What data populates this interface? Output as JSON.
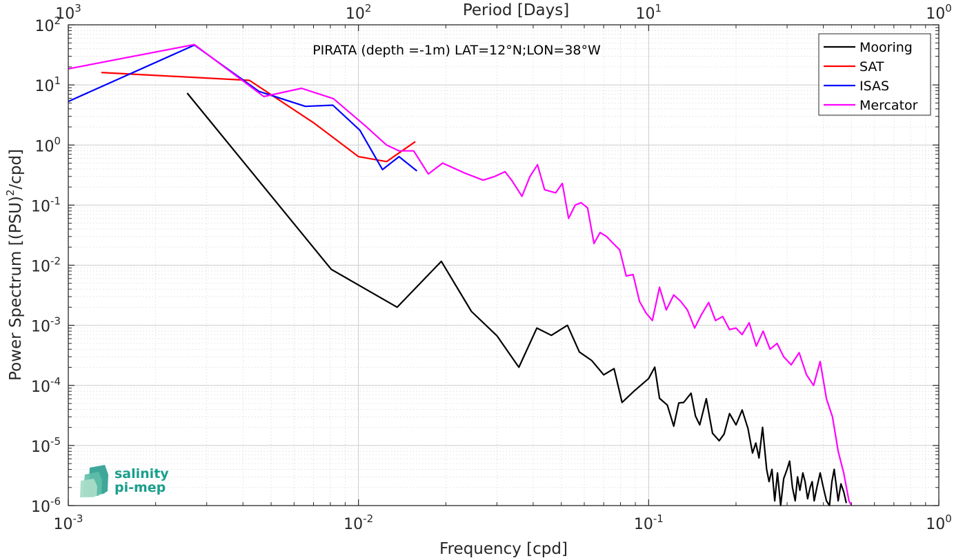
{
  "chart_data": {
    "type": "line",
    "title": "PIRATA (depth =-1m) LAT=12°N;LON=38°W",
    "xlabel": "Frequency [cpd]",
    "ylabel": "Power Spectrum [(PSU)²/cpd]",
    "ylabel_parts": {
      "pre": "Power Spectrum [(PSU)",
      "sup": "2",
      "post": "/cpd]"
    },
    "top_xlabel": "Period [Days]",
    "xscale": "log",
    "yscale": "log",
    "xlim": [
      0.001,
      1
    ],
    "ylim": [
      1e-06,
      100
    ],
    "grid": true,
    "minor_grid": true,
    "legend_position": "top-right",
    "x_ticks": [
      {
        "value": 0.001,
        "base": "10",
        "exp": "-3"
      },
      {
        "value": 0.01,
        "base": "10",
        "exp": "-2"
      },
      {
        "value": 0.1,
        "base": "10",
        "exp": "-1"
      },
      {
        "value": 1,
        "base": "10",
        "exp": "0"
      }
    ],
    "top_ticks": [
      {
        "value": 0.001,
        "base": "10",
        "exp": "3"
      },
      {
        "value": 0.01,
        "base": "10",
        "exp": "2"
      },
      {
        "value": 0.1,
        "base": "10",
        "exp": "1"
      },
      {
        "value": 1,
        "base": "10",
        "exp": "0"
      }
    ],
    "y_ticks": [
      {
        "value": 100,
        "base": "10",
        "exp": "2"
      },
      {
        "value": 10,
        "base": "10",
        "exp": "1"
      },
      {
        "value": 1,
        "base": "10",
        "exp": "0"
      },
      {
        "value": 0.1,
        "base": "10",
        "exp": "-1"
      },
      {
        "value": 0.01,
        "base": "10",
        "exp": "-2"
      },
      {
        "value": 0.001,
        "base": "10",
        "exp": "-3"
      },
      {
        "value": 0.0001,
        "base": "10",
        "exp": "-4"
      },
      {
        "value": 1e-05,
        "base": "10",
        "exp": "-5"
      },
      {
        "value": 1e-06,
        "base": "10",
        "exp": "-6"
      }
    ],
    "series": [
      {
        "name": "Mooring",
        "color": "#000000",
        "points": [
          [
            0.00257,
            7.3
          ],
          [
            0.00806,
            0.0085
          ],
          [
            0.0136,
            0.002
          ],
          [
            0.0193,
            0.0116
          ],
          [
            0.0245,
            0.0017
          ],
          [
            0.03,
            0.00067
          ],
          [
            0.0357,
            0.0002
          ],
          [
            0.0412,
            0.0009
          ],
          [
            0.0462,
            0.00068
          ],
          [
            0.0525,
            0.001
          ],
          [
            0.0577,
            0.00036
          ],
          [
            0.0636,
            0.00026
          ],
          [
            0.07,
            0.00015
          ],
          [
            0.076,
            0.00019
          ],
          [
            0.081,
            5.2e-05
          ],
          [
            0.089,
            8e-05
          ],
          [
            0.1,
            0.00013
          ],
          [
            0.105,
            0.000201
          ],
          [
            0.109,
            6.1e-05
          ],
          [
            0.116,
            4.7e-05
          ],
          [
            0.122,
            2.1e-05
          ],
          [
            0.127,
            5.1e-05
          ],
          [
            0.132,
            5.2e-05
          ],
          [
            0.14,
            7.4e-05
          ],
          [
            0.145,
            3.1e-05
          ],
          [
            0.15,
            2.2e-05
          ],
          [
            0.158,
            6e-05
          ],
          [
            0.166,
            1.6e-05
          ],
          [
            0.175,
            1.2e-05
          ],
          [
            0.182,
            1.55e-05
          ],
          [
            0.19,
            3.4e-05
          ],
          [
            0.2,
            2.2e-05
          ],
          [
            0.21,
            3.9e-05
          ],
          [
            0.22,
            1.9e-05
          ],
          [
            0.228,
            7.5e-06
          ],
          [
            0.234,
            1.1e-05
          ],
          [
            0.24,
            6.2e-06
          ],
          [
            0.247,
            2e-05
          ],
          [
            0.255,
            4e-06
          ],
          [
            0.26,
            2.5e-06
          ],
          [
            0.266,
            4e-06
          ],
          [
            0.272,
            1.2e-06
          ],
          [
            0.278,
            3.5e-06
          ],
          [
            0.285,
            1e-06
          ],
          [
            0.292,
            2.8e-06
          ],
          [
            0.3,
            4e-06
          ],
          [
            0.306,
            5.5e-06
          ],
          [
            0.313,
            2e-06
          ],
          [
            0.32,
            1.2e-06
          ],
          [
            0.326,
            3e-06
          ],
          [
            0.332,
            1.8e-06
          ],
          [
            0.34,
            3.5e-06
          ],
          [
            0.346,
            2.5e-06
          ],
          [
            0.353,
            1.3e-06
          ],
          [
            0.36,
            2e-06
          ],
          [
            0.366,
            2.5e-06
          ],
          [
            0.372,
            1.2e-06
          ],
          [
            0.38,
            2e-06
          ],
          [
            0.39,
            3.5e-06
          ],
          [
            0.4,
            2e-06
          ],
          [
            0.41,
            1.2e-06
          ],
          [
            0.42,
            1e-06
          ],
          [
            0.428,
            2.5e-06
          ],
          [
            0.436,
            4e-06
          ],
          [
            0.444,
            2e-06
          ],
          [
            0.45,
            1.2e-06
          ],
          [
            0.46,
            2.3e-06
          ],
          [
            0.47,
            1.7e-06
          ],
          [
            0.48,
            1.1e-06
          ]
        ]
      },
      {
        "name": "SAT",
        "color": "#ff0000",
        "points": [
          [
            0.0013,
            16.1
          ],
          [
            0.00421,
            11.9
          ],
          [
            0.007,
            2.35
          ],
          [
            0.01,
            0.64
          ],
          [
            0.0125,
            0.53
          ],
          [
            0.0157,
            1.14
          ]
        ]
      },
      {
        "name": "ISAS",
        "color": "#0000ff",
        "points": [
          [
            0.001,
            5.3
          ],
          [
            0.00272,
            46
          ],
          [
            0.00454,
            7.8
          ],
          [
            0.00656,
            4.4
          ],
          [
            0.00816,
            4.6
          ],
          [
            0.01012,
            1.76
          ],
          [
            0.0121,
            0.39
          ],
          [
            0.0138,
            0.64
          ],
          [
            0.0159,
            0.37
          ]
        ]
      },
      {
        "name": "Mercator",
        "color": "#ff00ff",
        "points": [
          [
            0.001,
            18.5
          ],
          [
            0.00272,
            47
          ],
          [
            0.00472,
            6.4
          ],
          [
            0.00636,
            8.8
          ],
          [
            0.0082,
            5.9
          ],
          [
            0.0106,
            2.05
          ],
          [
            0.0125,
            1.0
          ],
          [
            0.0138,
            0.8
          ],
          [
            0.0155,
            0.8
          ],
          [
            0.0174,
            0.33
          ],
          [
            0.0195,
            0.5
          ],
          [
            0.0233,
            0.34
          ],
          [
            0.0269,
            0.26
          ],
          [
            0.0295,
            0.3
          ],
          [
            0.032,
            0.36
          ],
          [
            0.0339,
            0.25
          ],
          [
            0.0366,
            0.14
          ],
          [
            0.039,
            0.3
          ],
          [
            0.0414,
            0.47
          ],
          [
            0.0438,
            0.18
          ],
          [
            0.0478,
            0.16
          ],
          [
            0.0504,
            0.23
          ],
          [
            0.053,
            0.06
          ],
          [
            0.0558,
            0.1
          ],
          [
            0.0585,
            0.11
          ],
          [
            0.0616,
            0.09
          ],
          [
            0.0648,
            0.023
          ],
          [
            0.068,
            0.035
          ],
          [
            0.0716,
            0.03
          ],
          [
            0.0755,
            0.023
          ],
          [
            0.0795,
            0.018
          ],
          [
            0.0837,
            0.0066
          ],
          [
            0.0884,
            0.007
          ],
          [
            0.093,
            0.0025
          ],
          [
            0.098,
            0.0016
          ],
          [
            0.103,
            0.0012
          ],
          [
            0.109,
            0.0043
          ],
          [
            0.115,
            0.0018
          ],
          [
            0.122,
            0.0032
          ],
          [
            0.129,
            0.0025
          ],
          [
            0.136,
            0.0018
          ],
          [
            0.144,
            0.0009
          ],
          [
            0.152,
            0.0015
          ],
          [
            0.161,
            0.0024
          ],
          [
            0.17,
            0.0012
          ],
          [
            0.18,
            0.0014
          ],
          [
            0.19,
            0.00085
          ],
          [
            0.2,
            0.0009
          ],
          [
            0.21,
            0.0007
          ],
          [
            0.222,
            0.0011
          ],
          [
            0.235,
            0.00045
          ],
          [
            0.248,
            0.0008
          ],
          [
            0.262,
            0.0004
          ],
          [
            0.277,
            0.0005
          ],
          [
            0.292,
            0.0003
          ],
          [
            0.31,
            0.00022
          ],
          [
            0.33,
            0.00035
          ],
          [
            0.35,
            0.00015
          ],
          [
            0.37,
            0.0001
          ],
          [
            0.39,
            0.00025
          ],
          [
            0.41,
            6e-05
          ],
          [
            0.43,
            3e-05
          ],
          [
            0.45,
            8e-06
          ],
          [
            0.47,
            3.5e-06
          ],
          [
            0.49,
            1.2e-06
          ],
          [
            0.5,
            1e-06
          ]
        ]
      }
    ],
    "logo": {
      "line1": "salinity",
      "line2": "pi-mep"
    }
  }
}
